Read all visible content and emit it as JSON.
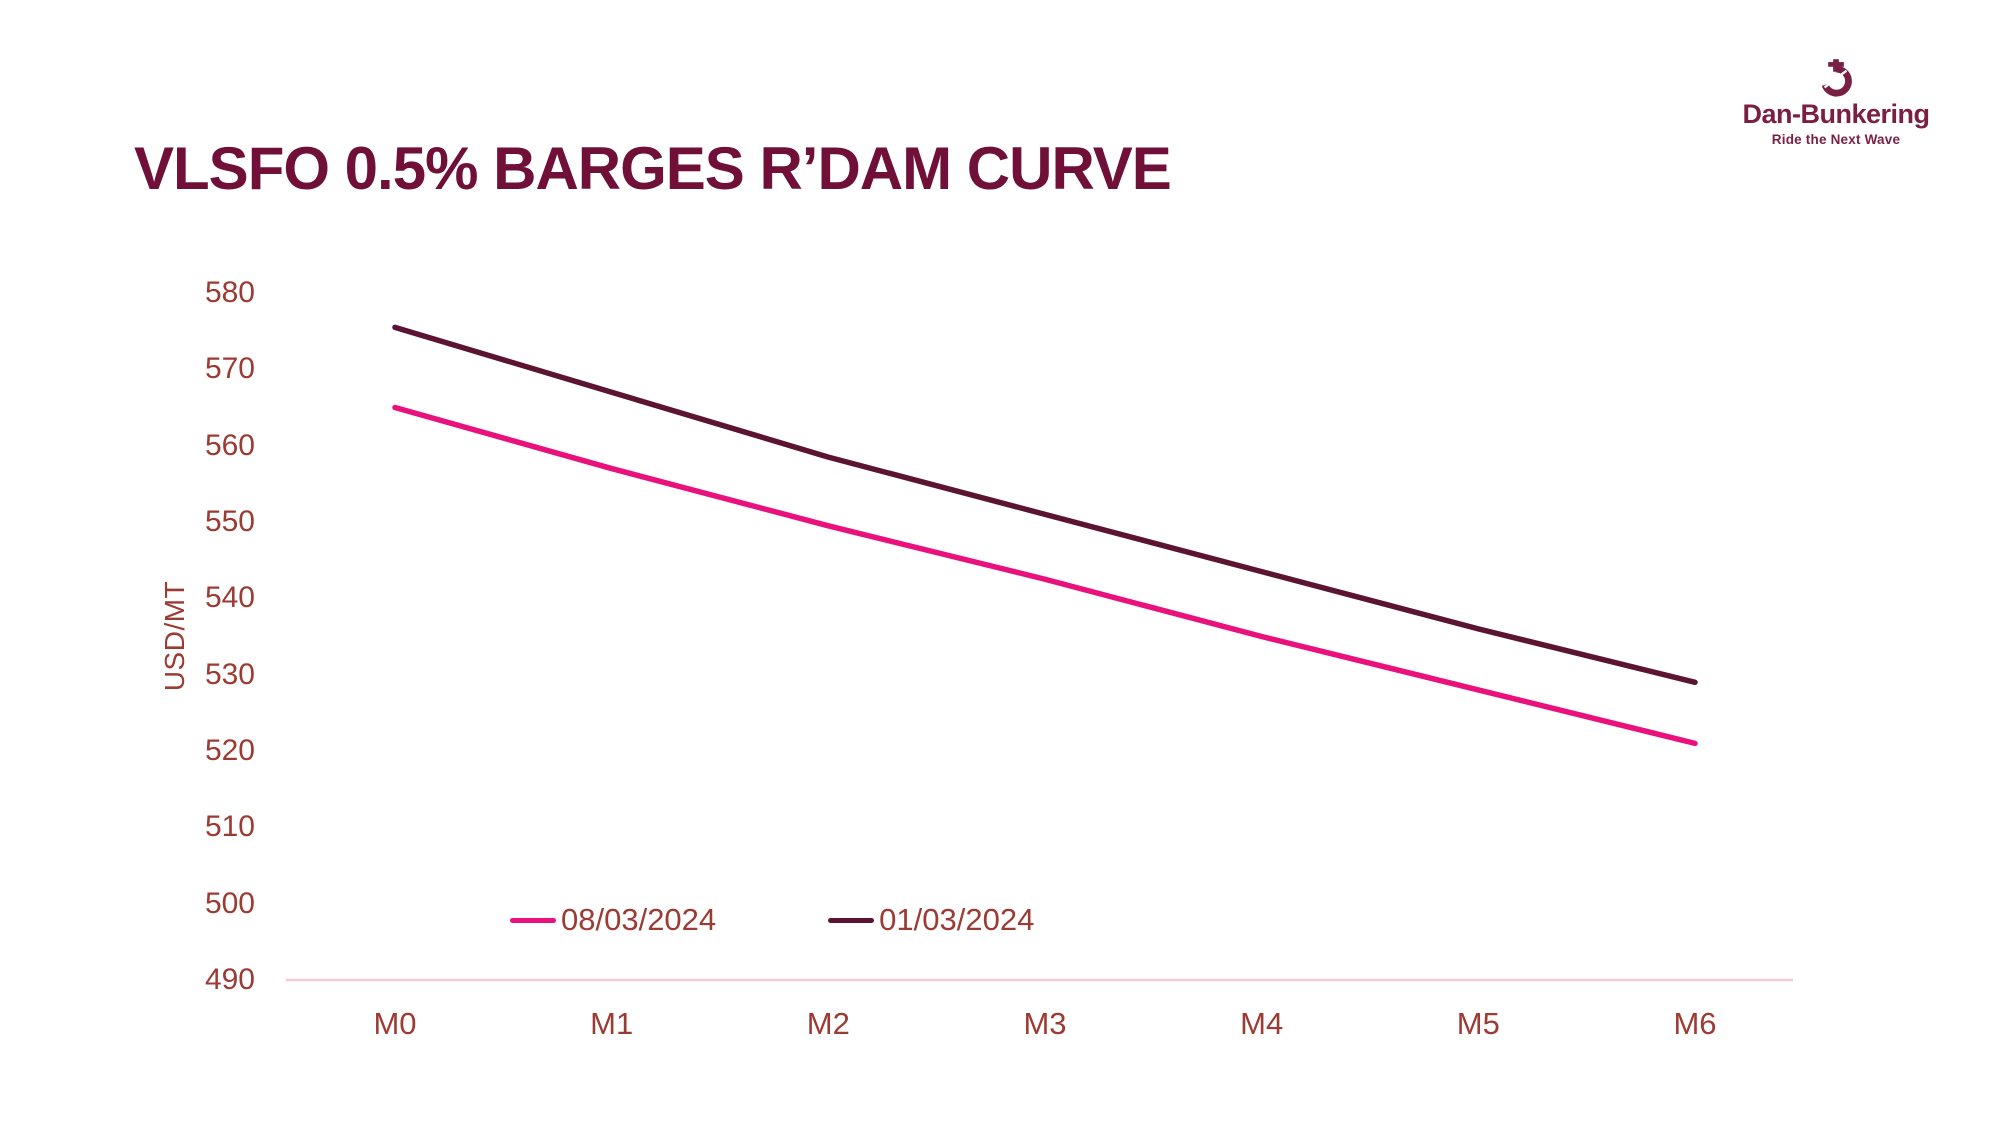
{
  "header": {
    "title": "VLSFO 0.5% BARGES R’DAM CURVE",
    "logo": {
      "name": "Dan-Bunkering",
      "tagline": "Ride the Next Wave",
      "color": "#7A1F44"
    }
  },
  "chart_data": {
    "type": "line",
    "title": "VLSFO 0.5% BARGES R’DAM CURVE",
    "xlabel": "",
    "ylabel": "USD/MT",
    "categories": [
      "M0",
      "M1",
      "M2",
      "M3",
      "M4",
      "M5",
      "M6"
    ],
    "series": [
      {
        "name": "08/03/2024",
        "color": "#E9117C",
        "values": [
          565,
          557,
          549.5,
          542.5,
          535,
          528,
          521
        ]
      },
      {
        "name": "01/03/2024",
        "color": "#5B1533",
        "values": [
          575.5,
          567,
          558.5,
          551,
          543.5,
          536,
          529
        ]
      }
    ],
    "ylim": [
      490,
      580
    ],
    "ytick_step": 10,
    "grid": false,
    "legend_position": "bottom-center-inside",
    "colors": {
      "title": "#700F38",
      "tick_label": "#9C3B33",
      "axis_line": "#F4CCD8"
    }
  }
}
